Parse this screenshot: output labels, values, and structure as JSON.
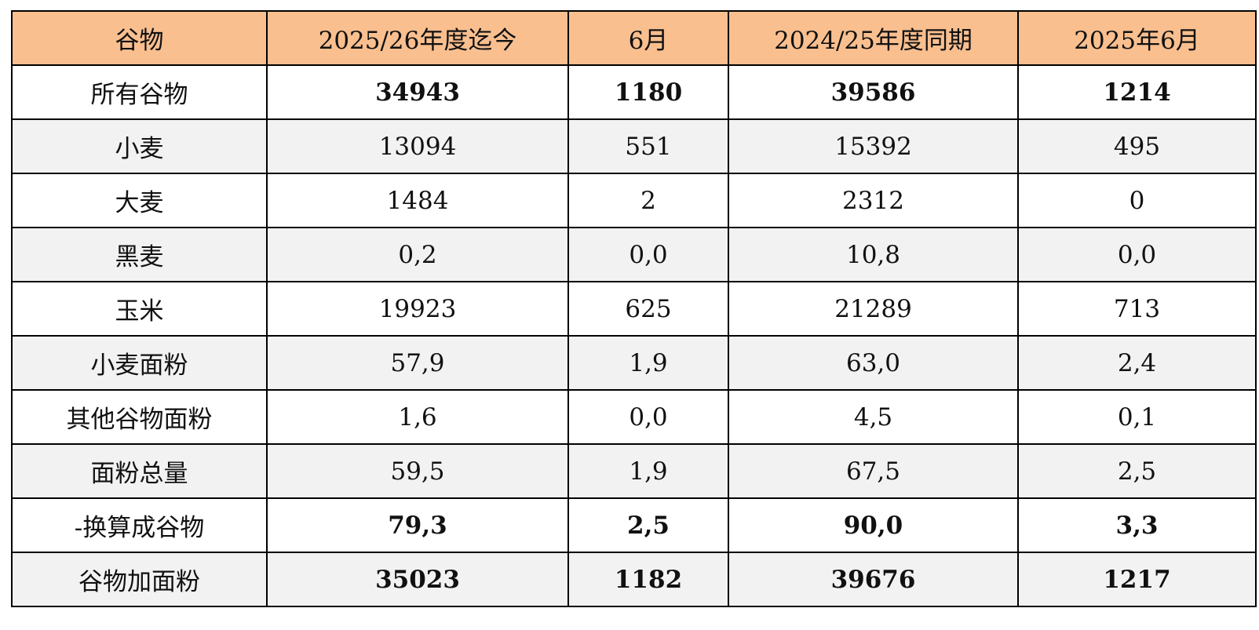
{
  "table": {
    "header": [
      "谷物",
      "2025/26年度迄今",
      "6月",
      "2024/25年度同期",
      "2025年6月"
    ],
    "rows": [
      [
        "所有谷物",
        "34943",
        "1180",
        "39586",
        "1214"
      ],
      [
        "小麦",
        "13094",
        "551",
        "15392",
        "495"
      ],
      [
        "大麦",
        "1484",
        "2",
        "2312",
        "0"
      ],
      [
        "黑麦",
        "0,2",
        "0,0",
        "10,8",
        "0,0"
      ],
      [
        "玉米",
        "19923",
        "625",
        "21289",
        "713"
      ],
      [
        "小麦面粉",
        "57,9",
        "1,9",
        "63,0",
        "2,4"
      ],
      [
        "其他谷物面粉",
        "1,6",
        "0,0",
        "4,5",
        "0,1"
      ],
      [
        "面粉总量",
        "59,5",
        "1,9",
        "67,5",
        "2,5"
      ],
      [
        "-换算成谷物",
        "79,3",
        "2,5",
        "90,0",
        "3,3"
      ],
      [
        "谷物加面粉",
        "35023",
        "1182",
        "39676",
        "1217"
      ]
    ]
  }
}
